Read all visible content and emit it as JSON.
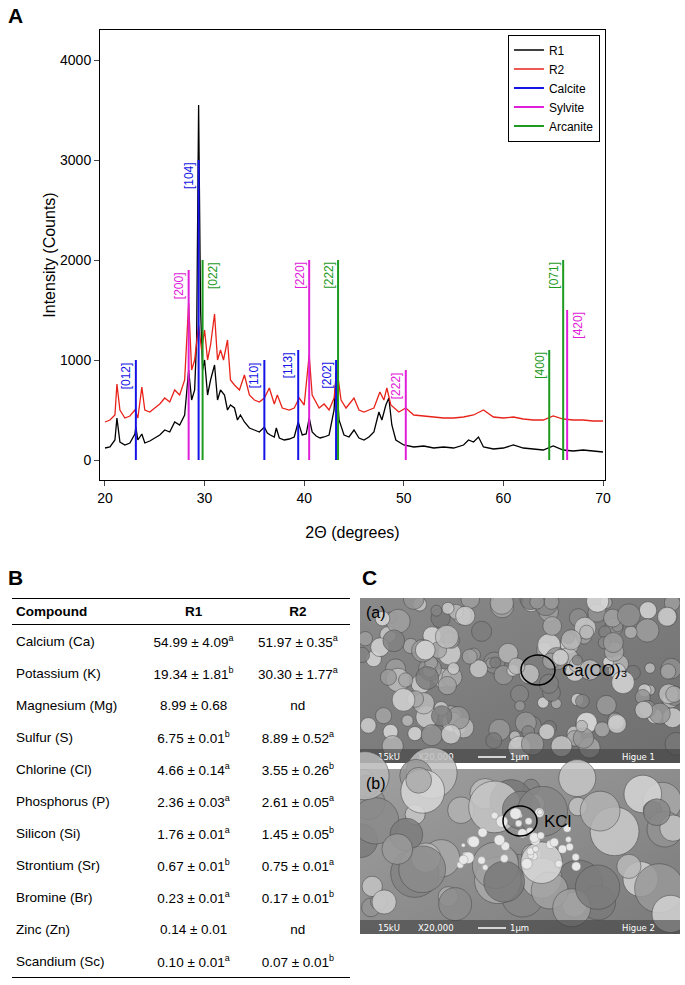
{
  "panels": [
    "A",
    "B",
    "C"
  ],
  "chart_data": {
    "type": "line",
    "x_label": "2Θ (degrees)",
    "y_label": "Intensity (Counts)",
    "xlim": [
      19.5,
      70.2
    ],
    "xticks": [
      20,
      30,
      40,
      50,
      60,
      70
    ],
    "ylim": [
      -200,
      4300
    ],
    "yticks": [
      0,
      1000,
      2000,
      3000,
      4000
    ],
    "grid": false,
    "legend": "top right",
    "series": [
      {
        "name": "R1",
        "color": "#000000",
        "x": [
          20,
          20.5,
          21,
          21.2,
          21.5,
          22,
          22.5,
          23,
          23.1,
          23.3,
          23.7,
          24,
          24.5,
          25,
          25.5,
          26,
          26.5,
          27,
          27.5,
          28,
          28.4,
          28.7,
          29,
          29.2,
          29.4,
          29.6,
          29.8,
          30,
          30.3,
          30.6,
          31,
          31.3,
          31.6,
          32,
          32.3,
          32.6,
          33,
          33.3,
          33.6,
          34,
          34.5,
          35,
          35.5,
          36,
          36.3,
          36.6,
          37,
          37.2,
          37.5,
          38,
          38.5,
          39,
          39.4,
          39.8,
          40.2,
          40.5,
          40.8,
          41.2,
          41.6,
          42,
          42.5,
          43,
          43.2,
          43.5,
          44,
          44.5,
          45,
          45.5,
          46,
          46.5,
          47,
          47.5,
          47.8,
          48.2,
          48.5,
          48.8,
          49.2,
          50,
          51,
          52,
          53,
          54,
          55,
          56,
          56.5,
          57,
          57.5,
          58,
          59,
          60,
          61,
          62,
          63,
          64,
          65,
          66,
          67,
          68,
          69,
          70
        ],
        "values": [
          120,
          130,
          200,
          420,
          180,
          150,
          170,
          260,
          330,
          200,
          260,
          170,
          190,
          220,
          250,
          300,
          280,
          380,
          350,
          450,
          900,
          600,
          700,
          1200,
          3550,
          1500,
          900,
          1000,
          650,
          800,
          950,
          600,
          700,
          650,
          500,
          550,
          520,
          400,
          450,
          380,
          320,
          300,
          280,
          330,
          270,
          250,
          230,
          320,
          220,
          200,
          210,
          230,
          380,
          250,
          260,
          420,
          280,
          240,
          220,
          230,
          250,
          500,
          880,
          400,
          250,
          230,
          300,
          220,
          200,
          230,
          280,
          480,
          400,
          550,
          620,
          350,
          200,
          150,
          130,
          140,
          120,
          130,
          120,
          150,
          200,
          180,
          230,
          130,
          110,
          120,
          150,
          120,
          110,
          100,
          140,
          100,
          90,
          100,
          90,
          80
        ]
      },
      {
        "name": "R2",
        "color": "#e8231a",
        "x": [
          20,
          20.5,
          21,
          21.2,
          21.5,
          22,
          22.5,
          23,
          23.3,
          23.7,
          24,
          24.5,
          25,
          25.5,
          26,
          26.5,
          27,
          27.5,
          28,
          28.4,
          28.7,
          29,
          29.4,
          29.7,
          30,
          30.3,
          30.6,
          31,
          31.3,
          31.6,
          31.9,
          32.3,
          32.6,
          33,
          33.5,
          34,
          34.5,
          35,
          35.5,
          36,
          36.5,
          37,
          37.3,
          37.8,
          38.5,
          39,
          39.5,
          40,
          40.5,
          40.8,
          41.5,
          42,
          42.5,
          43,
          43.3,
          43.7,
          44.2,
          45,
          45.5,
          46,
          46.5,
          47,
          47.6,
          48,
          48.3,
          48.7,
          49.5,
          50.2,
          51,
          52,
          53,
          54,
          55,
          56,
          57,
          58,
          59,
          60,
          61,
          62,
          63,
          64,
          65,
          66,
          67,
          68,
          69,
          70
        ],
        "values": [
          380,
          400,
          450,
          760,
          500,
          420,
          440,
          500,
          420,
          730,
          500,
          480,
          520,
          560,
          620,
          580,
          700,
          650,
          800,
          1570,
          900,
          1000,
          1350,
          1100,
          1300,
          1000,
          1150,
          1460,
          1000,
          1100,
          1000,
          1200,
          800,
          750,
          700,
          850,
          650,
          600,
          580,
          620,
          720,
          560,
          650,
          520,
          500,
          520,
          620,
          550,
          1050,
          650,
          520,
          560,
          500,
          620,
          900,
          600,
          520,
          620,
          500,
          480,
          500,
          520,
          680,
          600,
          720,
          550,
          480,
          520,
          450,
          440,
          430,
          420,
          420,
          430,
          450,
          500,
          430,
          420,
          430,
          410,
          400,
          400,
          440,
          410,
          400,
          400,
          390,
          390
        ]
      },
      {
        "name": "Calcite",
        "color": "#1414e6",
        "type": "stick",
        "x": [
          23.1,
          29.4,
          36.0,
          39.4,
          43.2
        ],
        "values": [
          1000,
          3000,
          1000,
          1100,
          1000
        ],
        "labels": [
          "[012]",
          "[104]",
          "[110]",
          "[113]",
          "[202]"
        ]
      },
      {
        "name": "Sylvite",
        "color": "#e020d8",
        "type": "stick",
        "x": [
          28.4,
          40.5,
          50.2,
          66.4
        ],
        "values": [
          1900,
          2000,
          900,
          1500
        ],
        "labels": [
          "[200]",
          "[220]",
          "[222]",
          "[420]"
        ]
      },
      {
        "name": "Arcanite",
        "color": "#1e9a1e",
        "type": "stick",
        "x": [
          29.8,
          43.4,
          64.6,
          66.0
        ],
        "values": [
          2000,
          2000,
          1100,
          2000
        ],
        "labels": [
          "[022]",
          "[222]",
          "[400]",
          "[071]"
        ]
      }
    ]
  },
  "table": {
    "header": [
      "Compound",
      "R1",
      "R2"
    ],
    "rows": [
      [
        "Calcium (Ca)",
        {
          "text": "54.99 ± 4.09",
          "sup": "a"
        },
        {
          "text": "51.97 ± 0.35",
          "sup": "a"
        }
      ],
      [
        "Potassium (K)",
        {
          "text": "19.34 ± 1.81",
          "sup": "b"
        },
        {
          "text": "30.30 ± 1.77",
          "sup": "a"
        }
      ],
      [
        "Magnesium (Mg)",
        {
          "text": "8.99 ± 0.68"
        },
        {
          "text": "nd"
        }
      ],
      [
        "Sulfur (S)",
        {
          "text": "6.75 ± 0.01",
          "sup": "b"
        },
        {
          "text": "8.89 ± 0.52",
          "sup": "a"
        }
      ],
      [
        "Chlorine (Cl)",
        {
          "text": "4.66 ± 0.14",
          "sup": "a"
        },
        {
          "text": "3.55 ± 0.26",
          "sup": "b"
        }
      ],
      [
        "Phosphorus (P)",
        {
          "text": "2.36 ± 0.03",
          "sup": "a"
        },
        {
          "text": "2.61 ± 0.05",
          "sup": "a"
        }
      ],
      [
        "Silicon (Si)",
        {
          "text": "1.76 ± 0.01",
          "sup": "a"
        },
        {
          "text": "1.45 ± 0.05",
          "sup": "b"
        }
      ],
      [
        "Strontium (Sr)",
        {
          "text": "0.67 ± 0.01",
          "sup": "b"
        },
        {
          "text": "0.75 ± 0.01",
          "sup": "a"
        }
      ],
      [
        "Bromine (Br)",
        {
          "text": "0.23 ± 0.01",
          "sup": "a"
        },
        {
          "text": "0.17 ± 0.01",
          "sup": "b"
        }
      ],
      [
        "Zinc (Zn)",
        {
          "text": "0.14 ± 0.01"
        },
        {
          "text": "nd"
        }
      ],
      [
        "Scandium (Sc)",
        {
          "text": "0.10 ± 0.01",
          "sup": "a"
        },
        {
          "text": "0.07 ± 0.01",
          "sup": "b"
        }
      ]
    ]
  },
  "images": [
    {
      "tag": "(a)",
      "label": "Ca(CO)₃",
      "info": [
        "15kU",
        "X20,000",
        "1μm",
        "Higue 1"
      ]
    },
    {
      "tag": "(b)",
      "label": "KCl",
      "info": [
        "15kU",
        "X20,000",
        "1μm",
        "Higue 2"
      ]
    }
  ]
}
